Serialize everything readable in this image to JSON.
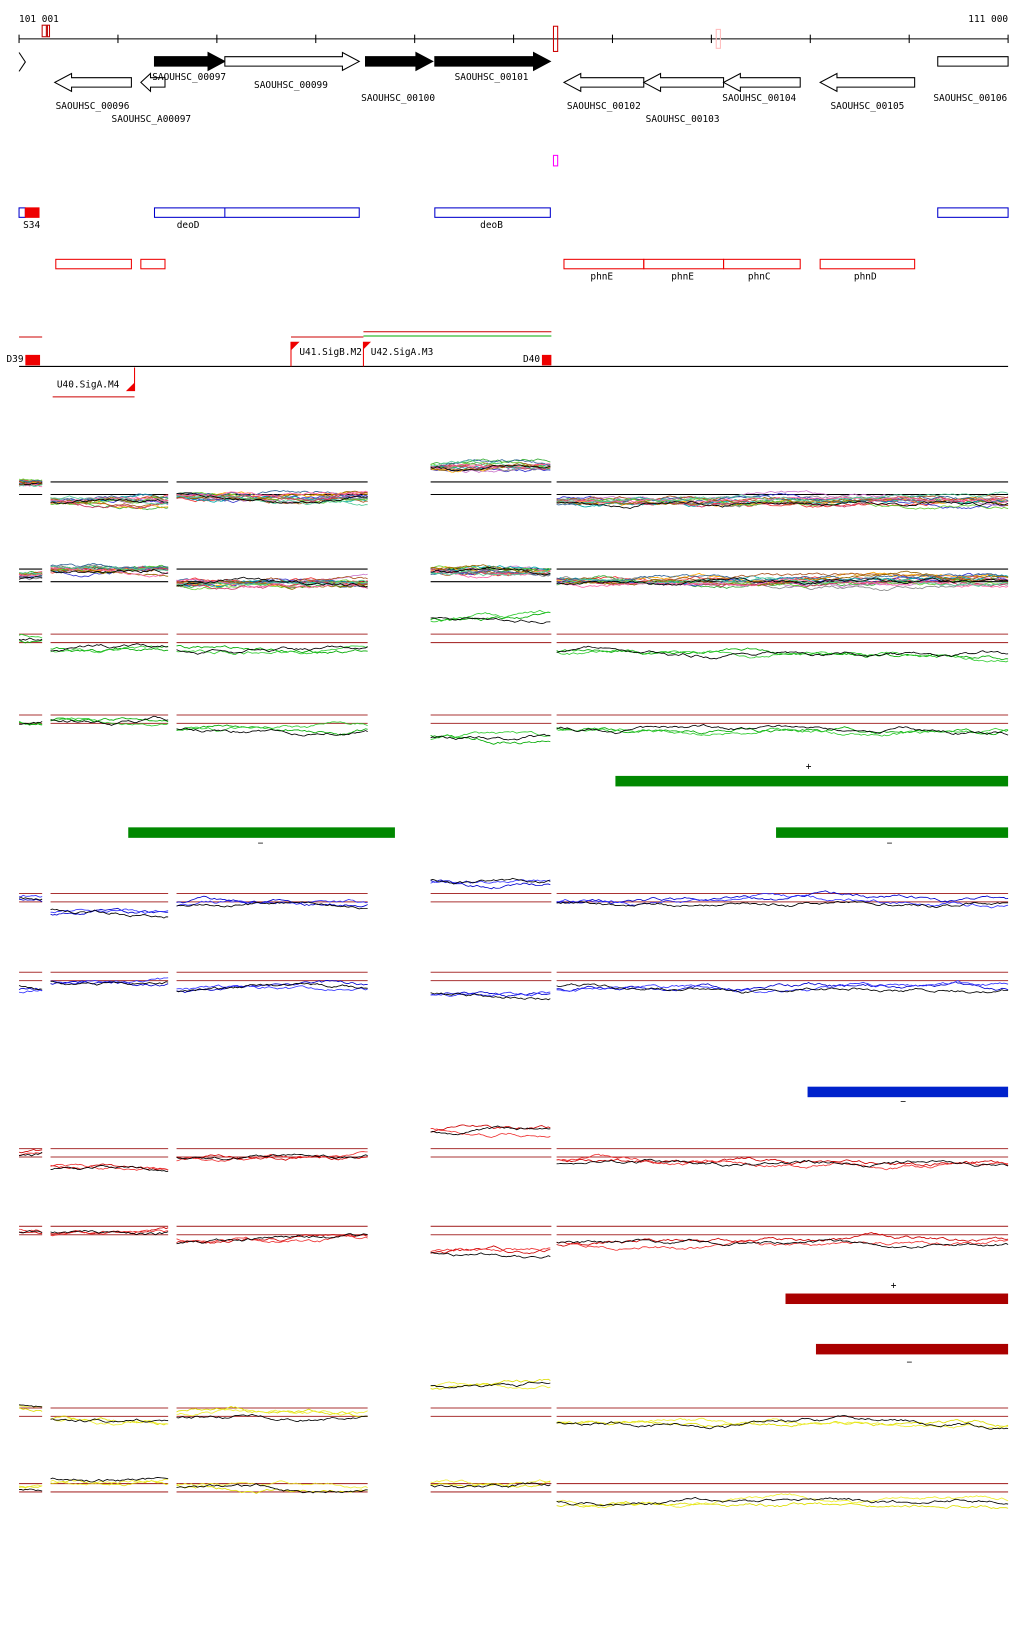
{
  "ruler": {
    "start": "101 001",
    "end": "111 000"
  },
  "genes": [
    "SAOUHSC_00096",
    "SAOUHSC_A00097",
    "SAOUHSC_00097",
    "SAOUHSC_00099",
    "SAOUHSC_00100",
    "SAOUHSC_00101",
    "SAOUHSC_00102",
    "SAOUHSC_00103",
    "SAOUHSC_00104",
    "SAOUHSC_00105",
    "SAOUHSC_00106"
  ],
  "operons": [
    "S34",
    "deoD",
    "deoB",
    "phnE",
    "phnE",
    "phnC",
    "phnD"
  ],
  "promoters": [
    "D39",
    "U41.SigB.M2",
    "U42.SigA.M3",
    "D40",
    "U40.SigA.M4"
  ],
  "strand_labels": [
    "+",
    "−",
    "−",
    "−",
    "+",
    "−"
  ]
}
